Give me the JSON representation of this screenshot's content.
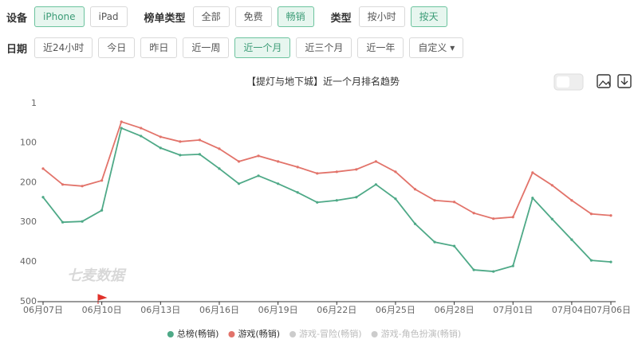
{
  "filters": [
    {
      "label": "设备",
      "options": [
        "iPhone",
        "iPad"
      ],
      "selected": 0
    },
    {
      "label": "榜单类型",
      "options": [
        "全部",
        "免费",
        "畅销"
      ],
      "selected": 2
    },
    {
      "label": "类型",
      "options": [
        "按小时",
        "按天"
      ],
      "selected": 1
    }
  ],
  "date_filter": {
    "label": "日期",
    "options": [
      "近24小时",
      "今日",
      "昨日",
      "近一周",
      "近一个月",
      "近三个月",
      "近一年"
    ],
    "selected": 4,
    "dropdown": "自定义"
  },
  "watermark": "七麦数据",
  "chart_data": {
    "type": "line",
    "title": "【提灯与地下城】近一个月排名趋势",
    "categories": [
      "06月07日",
      null,
      null,
      "06月10日",
      null,
      null,
      "06月13日",
      null,
      null,
      "06月16日",
      null,
      null,
      "06月19日",
      null,
      null,
      "06月22日",
      null,
      null,
      "06月25日",
      null,
      null,
      "06月28日",
      null,
      null,
      "07月01日",
      null,
      null,
      "07月04日",
      null,
      "07月06日"
    ],
    "series": [
      {
        "name": "总榜(畅销)",
        "color": "#4ea987",
        "values": [
          237,
          300,
          298,
          270,
          63,
          83,
          113,
          131,
          129,
          165,
          203,
          183,
          203,
          225,
          250,
          245,
          237,
          205,
          241,
          304,
          350,
          360,
          420,
          424,
          410,
          239,
          292,
          344,
          396,
          400
        ]
      },
      {
        "name": "游戏(畅销)",
        "color": "#e2736a",
        "values": [
          165,
          205,
          209,
          195,
          47,
          63,
          85,
          97,
          93,
          115,
          147,
          133,
          147,
          161,
          177,
          173,
          167,
          147,
          173,
          217,
          245,
          249,
          277,
          291,
          287,
          175,
          207,
          245,
          279,
          283
        ]
      }
    ],
    "inactive_legend": [
      "游戏-冒险(畅销)",
      "游戏-角色扮演(畅销)"
    ],
    "inactive_color": "#cccccc",
    "ylim": [
      1,
      500
    ],
    "yticks": [
      1,
      100,
      200,
      300,
      400,
      500
    ],
    "y_inverted": true
  }
}
